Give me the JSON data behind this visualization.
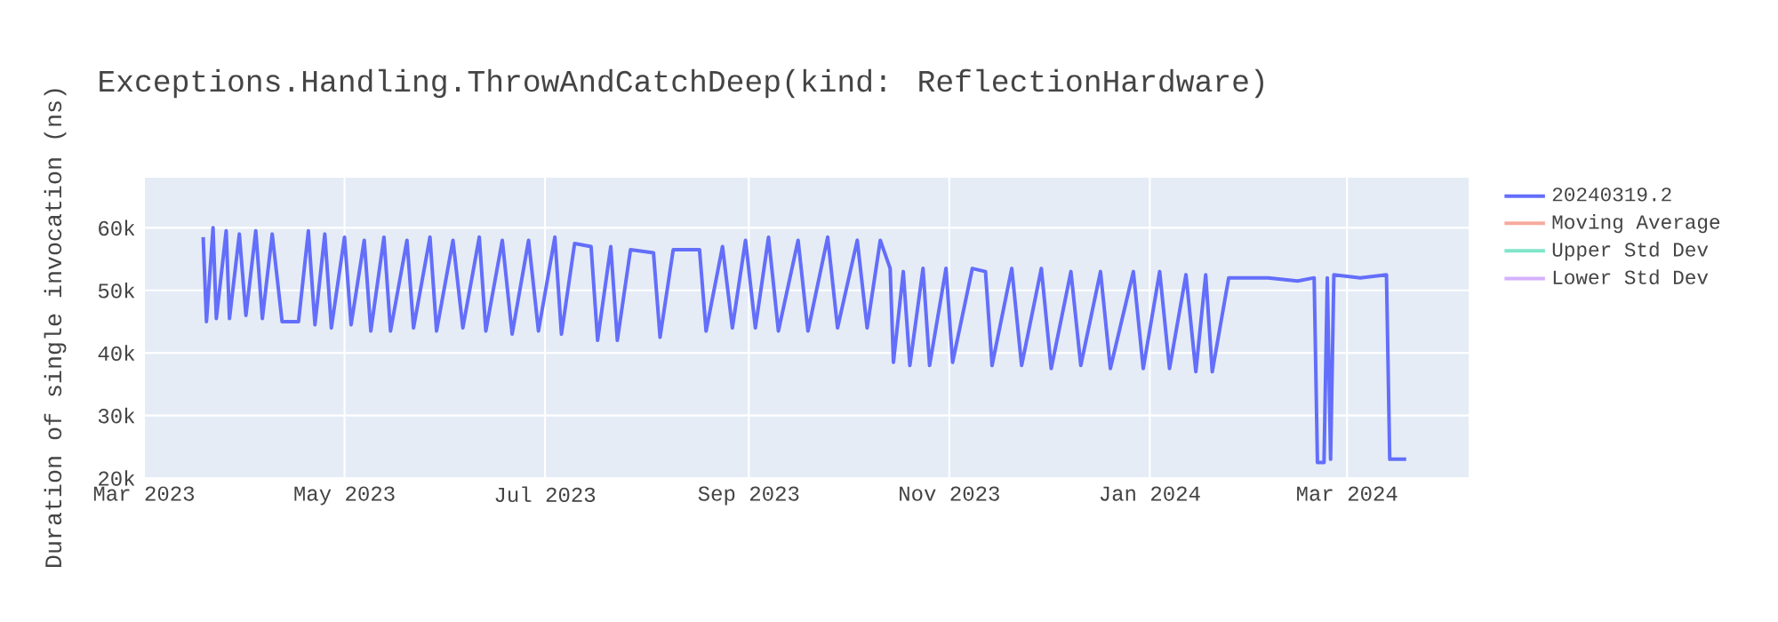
{
  "chart_data": {
    "type": "line",
    "title": "Exceptions.Handling.ThrowAndCatchDeep(kind: ReflectionHardware)",
    "ylabel": "Duration of single invocation (ns)",
    "xlim": [
      "2023-03-01",
      "2024-04-07"
    ],
    "ylim": [
      20000,
      68000
    ],
    "xticks": [
      {
        "value": "2023-03-01",
        "label": "Mar 2023"
      },
      {
        "value": "2023-05-01",
        "label": "May 2023"
      },
      {
        "value": "2023-07-01",
        "label": "Jul 2023"
      },
      {
        "value": "2023-09-01",
        "label": "Sep 2023"
      },
      {
        "value": "2023-11-01",
        "label": "Nov 2023"
      },
      {
        "value": "2024-01-01",
        "label": "Jan 2024"
      },
      {
        "value": "2024-03-01",
        "label": "Mar 2024"
      }
    ],
    "yticks": [
      {
        "value": 20000,
        "label": "20k"
      },
      {
        "value": 30000,
        "label": "30k"
      },
      {
        "value": 40000,
        "label": "40k"
      },
      {
        "value": 50000,
        "label": "50k"
      },
      {
        "value": 60000,
        "label": "60k"
      }
    ],
    "grid": true,
    "legend": "top right",
    "series": [
      {
        "name": "20240319.2",
        "color": "#636efa",
        "x": [
          "2023-03-19",
          "2023-03-20",
          "2023-03-22",
          "2023-03-23",
          "2023-03-26",
          "2023-03-27",
          "2023-03-30",
          "2023-04-01",
          "2023-04-04",
          "2023-04-06",
          "2023-04-09",
          "2023-04-12",
          "2023-04-17",
          "2023-04-20",
          "2023-04-22",
          "2023-04-25",
          "2023-04-27",
          "2023-05-01",
          "2023-05-03",
          "2023-05-07",
          "2023-05-09",
          "2023-05-13",
          "2023-05-15",
          "2023-05-20",
          "2023-05-22",
          "2023-05-27",
          "2023-05-29",
          "2023-06-03",
          "2023-06-06",
          "2023-06-11",
          "2023-06-13",
          "2023-06-18",
          "2023-06-21",
          "2023-06-26",
          "2023-06-29",
          "2023-07-04",
          "2023-07-06",
          "2023-07-10",
          "2023-07-15",
          "2023-07-17",
          "2023-07-21",
          "2023-07-23",
          "2023-07-27",
          "2023-08-03",
          "2023-08-05",
          "2023-08-09",
          "2023-08-17",
          "2023-08-19",
          "2023-08-24",
          "2023-08-27",
          "2023-08-31",
          "2023-09-03",
          "2023-09-07",
          "2023-09-10",
          "2023-09-16",
          "2023-09-19",
          "2023-09-25",
          "2023-09-28",
          "2023-10-04",
          "2023-10-07",
          "2023-10-11",
          "2023-10-14",
          "2023-10-15",
          "2023-10-18",
          "2023-10-20",
          "2023-10-24",
          "2023-10-26",
          "2023-10-31",
          "2023-11-02",
          "2023-11-08",
          "2023-11-12",
          "2023-11-14",
          "2023-11-20",
          "2023-11-23",
          "2023-11-29",
          "2023-12-02",
          "2023-12-08",
          "2023-12-11",
          "2023-12-17",
          "2023-12-20",
          "2023-12-27",
          "2023-12-30",
          "2024-01-04",
          "2024-01-07",
          "2024-01-12",
          "2024-01-15",
          "2024-01-18",
          "2024-01-20",
          "2024-01-25",
          "2024-02-06",
          "2024-02-15",
          "2024-02-20",
          "2024-02-21",
          "2024-02-23",
          "2024-02-24",
          "2024-02-25",
          "2024-02-26",
          "2024-03-05",
          "2024-03-13",
          "2024-03-14",
          "2024-03-19"
        ],
        "values": [
          58500,
          45000,
          60000,
          45500,
          59500,
          45500,
          59000,
          46000,
          59500,
          45500,
          59000,
          45000,
          45000,
          59500,
          44500,
          59000,
          44000,
          58500,
          44500,
          58000,
          43500,
          58500,
          43500,
          58000,
          44000,
          58500,
          43500,
          58000,
          44000,
          58500,
          43500,
          58000,
          43000,
          58000,
          43500,
          58500,
          43000,
          57500,
          57000,
          42000,
          57000,
          42000,
          56500,
          56000,
          42500,
          56500,
          56500,
          43500,
          57000,
          44000,
          58000,
          44000,
          58500,
          43500,
          58000,
          43500,
          58500,
          44000,
          58000,
          44000,
          58000,
          53500,
          38500,
          53000,
          38000,
          53500,
          38000,
          53500,
          38500,
          53500,
          53000,
          38000,
          53500,
          38000,
          53500,
          37500,
          53000,
          38000,
          53000,
          37500,
          53000,
          37500,
          53000,
          37500,
          52500,
          37000,
          52500,
          37000,
          52000,
          52000,
          51500,
          52000,
          22500,
          22500,
          52000,
          23000,
          52500,
          52000,
          52500,
          23000,
          23000
        ]
      },
      {
        "name": "Moving Average",
        "color": "#f7aa9d"
      },
      {
        "name": "Upper Std Dev",
        "color": "#80e5ca"
      },
      {
        "name": "Lower Std Dev",
        "color": "#d5b1fc"
      }
    ]
  }
}
